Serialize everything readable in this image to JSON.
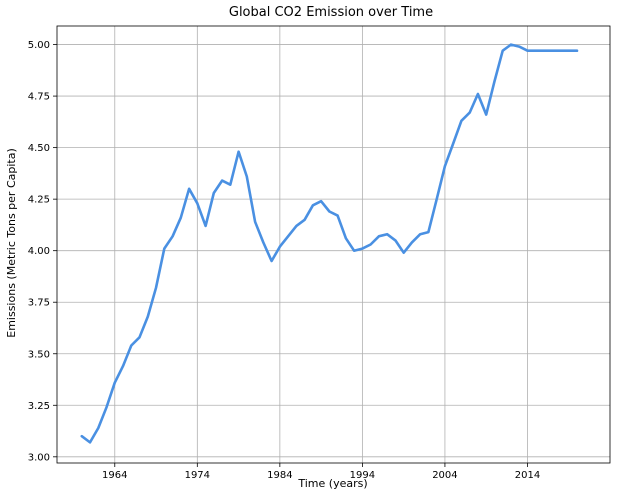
{
  "colors": {
    "series": "#4a90e2",
    "grid": "#b0b0b0"
  },
  "chart_data": {
    "type": "line",
    "title": "Global CO2 Emission over Time",
    "xlabel": "Time (years)",
    "ylabel": "Emissions (Metric Tons per Capita)",
    "xlim": [
      1957,
      2024
    ],
    "ylim": [
      2.97,
      5.09
    ],
    "xticks": [
      1964,
      1974,
      1984,
      1994,
      2004,
      2014
    ],
    "yticks": [
      3.0,
      3.25,
      3.5,
      3.75,
      4.0,
      4.25,
      4.5,
      4.75,
      5.0
    ],
    "ytick_labels": [
      "3.00",
      "3.25",
      "3.50",
      "3.75",
      "4.00",
      "4.25",
      "4.50",
      "4.75",
      "5.00"
    ],
    "grid": true,
    "series": [
      {
        "x": [
          1960,
          1961,
          1962,
          1963,
          1964,
          1965,
          1966,
          1967,
          1968,
          1969,
          1970,
          1971,
          1972,
          1973,
          1974,
          1975,
          1976,
          1977,
          1978,
          1979,
          1980,
          1981,
          1982,
          1983,
          1984,
          1985,
          1986,
          1987,
          1988,
          1989,
          1990,
          1991,
          1992,
          1993,
          1994,
          1995,
          1996,
          1997,
          1998,
          1999,
          2000,
          2001,
          2002,
          2003,
          2004,
          2005,
          2006,
          2007,
          2008,
          2009,
          2010,
          2011,
          2012,
          2013,
          2014,
          2015,
          2016,
          2017,
          2018,
          2019,
          2020
        ],
        "values": [
          3.1,
          3.07,
          3.14,
          3.24,
          3.36,
          3.44,
          3.54,
          3.58,
          3.68,
          3.82,
          4.01,
          4.07,
          4.16,
          4.3,
          4.23,
          4.12,
          4.28,
          4.34,
          4.32,
          4.48,
          4.36,
          4.14,
          4.04,
          3.95,
          4.02,
          4.07,
          4.12,
          4.15,
          4.22,
          4.24,
          4.19,
          4.17,
          4.06,
          4.0,
          4.01,
          4.03,
          4.07,
          4.08,
          4.05,
          3.99,
          4.04,
          4.08,
          4.09,
          4.25,
          4.41,
          4.52,
          4.63,
          4.67,
          4.76,
          4.66,
          4.82,
          4.97,
          5.0,
          4.99,
          4.97,
          4.97,
          4.97,
          4.97,
          4.97,
          4.97,
          4.97
        ]
      }
    ]
  }
}
